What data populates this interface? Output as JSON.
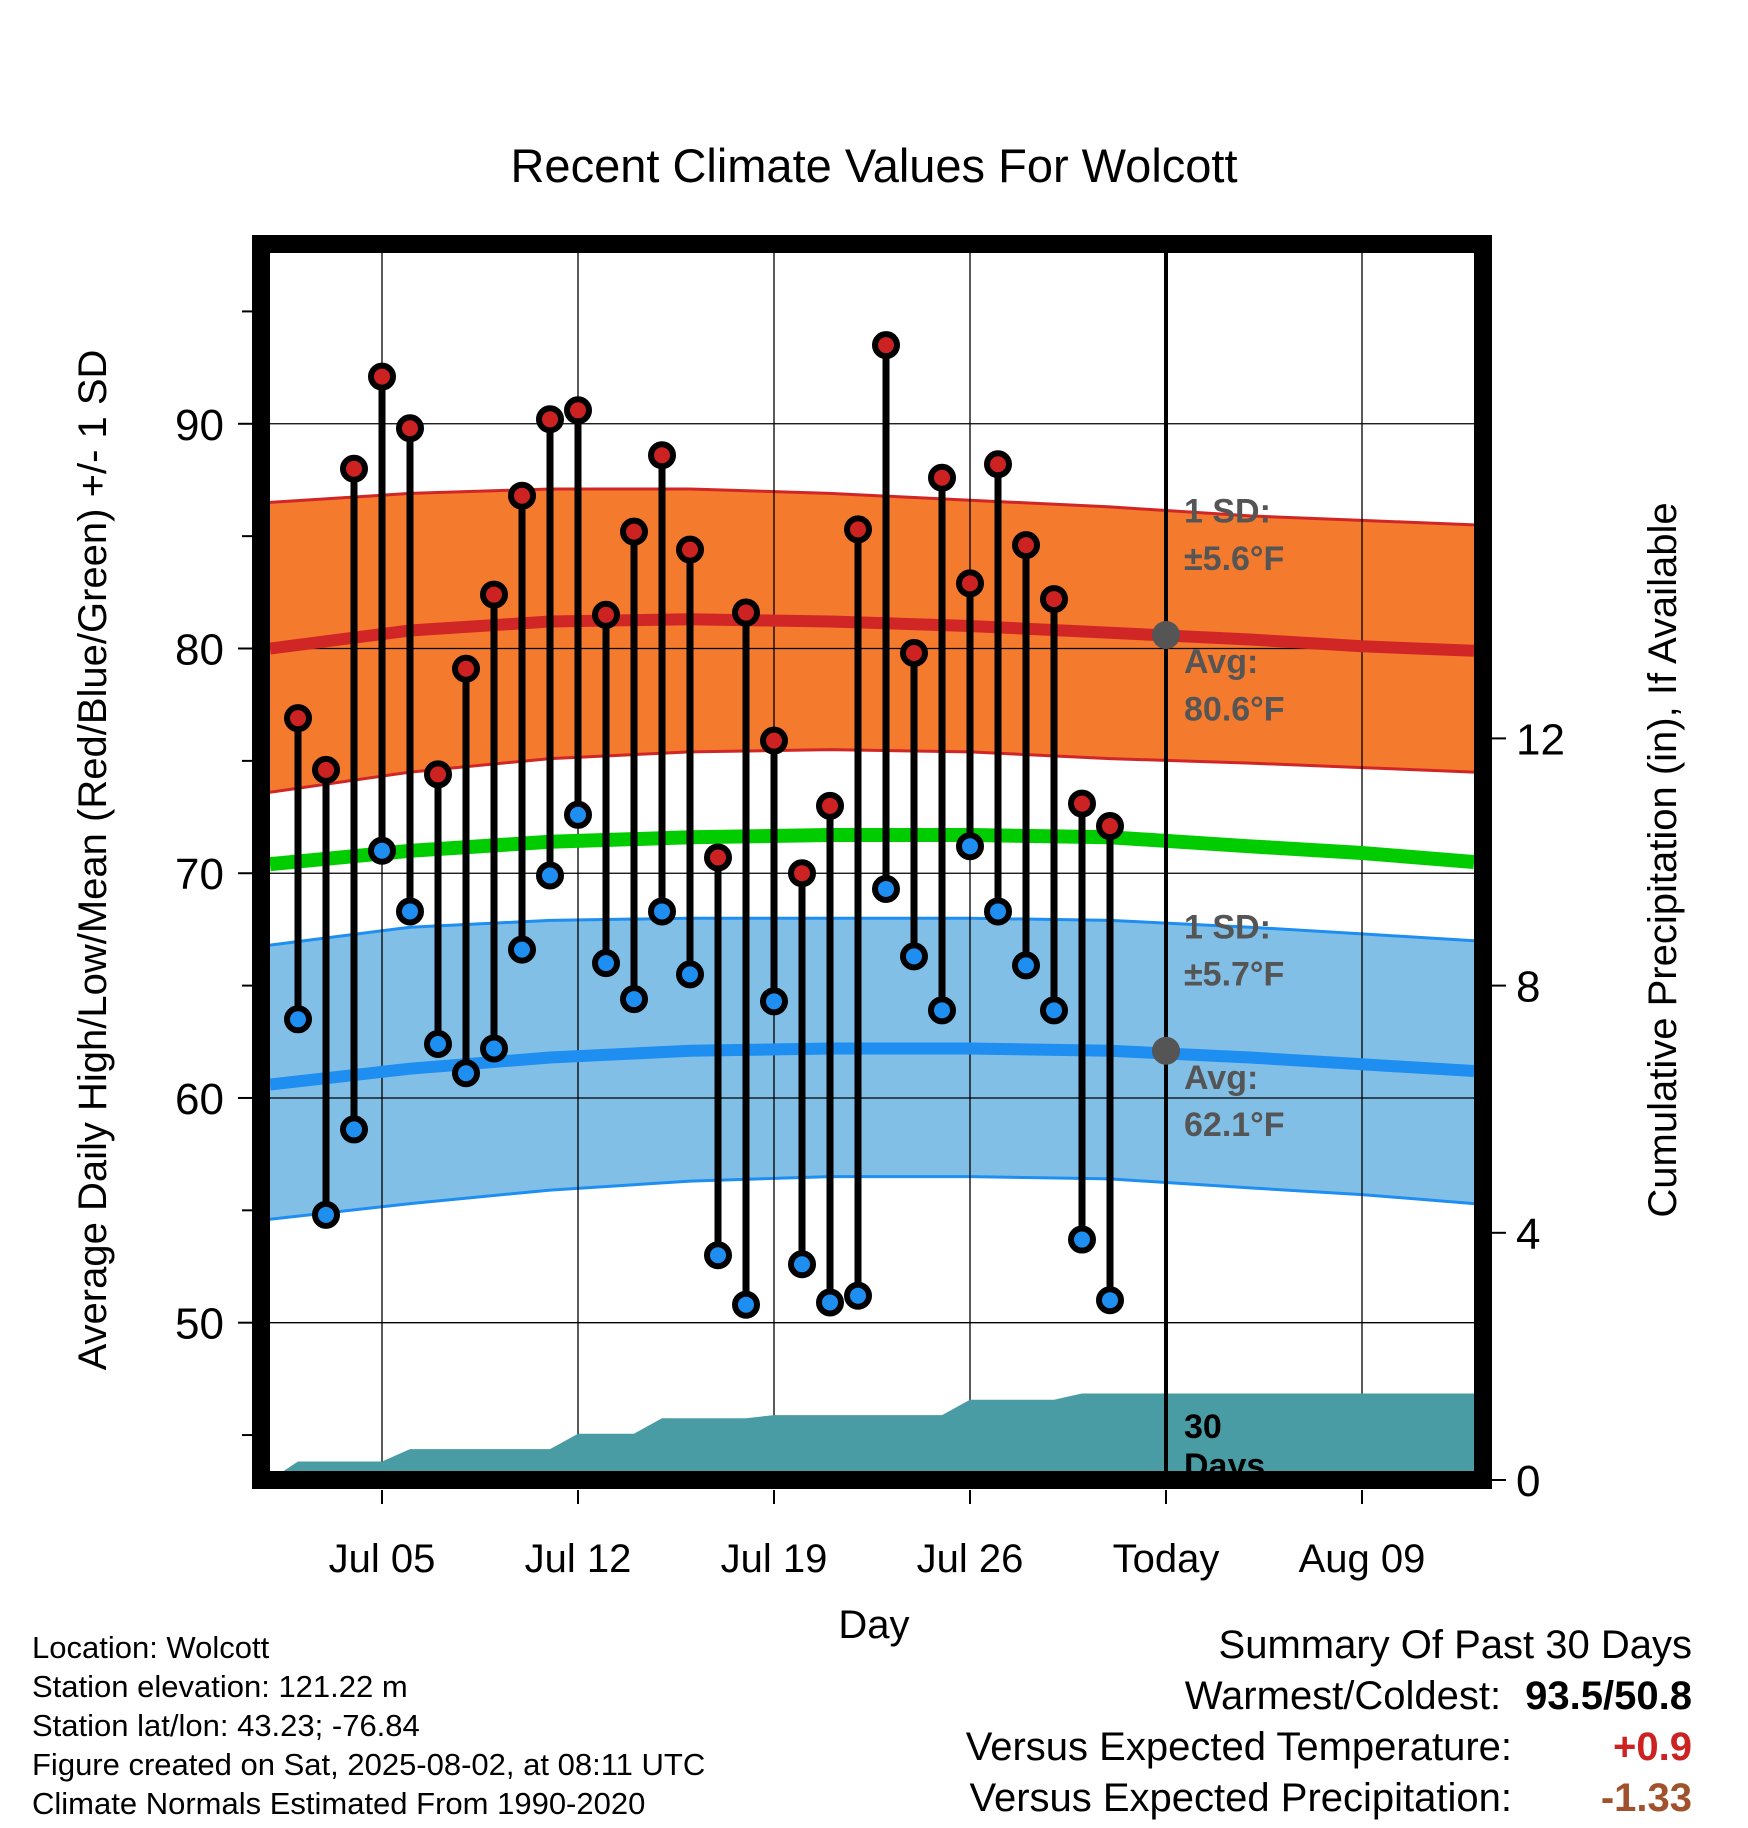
{
  "chart_data": {
    "type": "line",
    "title": "Recent Climate Values For Wolcott",
    "xlabel": "Day",
    "ylabel": "Average Daily High/Low/Mean (Red/Blue/Green) +/- 1 SD",
    "y2label": "Cumulative Precipitation (in), If Available",
    "ylim": [
      43,
      98
    ],
    "y2lim": [
      0,
      20
    ],
    "yticks": [
      50,
      60,
      70,
      80,
      90
    ],
    "y2ticks": [
      0,
      4,
      8,
      12
    ],
    "xlim": [
      "2025-07-01",
      "2025-08-13"
    ],
    "xticks": [
      {
        "date": "2025-07-05",
        "label": "Jul 05"
      },
      {
        "date": "2025-07-12",
        "label": "Jul 12"
      },
      {
        "date": "2025-07-19",
        "label": "Jul 19"
      },
      {
        "date": "2025-07-26",
        "label": "Jul 26"
      },
      {
        "date": "2025-08-02",
        "label": "Today"
      },
      {
        "date": "2025-08-09",
        "label": "Aug 09"
      }
    ],
    "today": "2025-08-02",
    "daily": [
      {
        "date": "2025-07-02",
        "high": 76.9,
        "low": 63.5
      },
      {
        "date": "2025-07-03",
        "high": 74.6,
        "low": 54.8
      },
      {
        "date": "2025-07-04",
        "high": 88.0,
        "low": 58.6
      },
      {
        "date": "2025-07-05",
        "high": 92.1,
        "low": 71.0
      },
      {
        "date": "2025-07-06",
        "high": 89.8,
        "low": 68.3
      },
      {
        "date": "2025-07-07",
        "high": 74.4,
        "low": 62.4
      },
      {
        "date": "2025-07-08",
        "high": 79.1,
        "low": 61.1
      },
      {
        "date": "2025-07-09",
        "high": 82.4,
        "low": 62.2
      },
      {
        "date": "2025-07-10",
        "high": 86.8,
        "low": 66.6
      },
      {
        "date": "2025-07-11",
        "high": 90.2,
        "low": 69.9
      },
      {
        "date": "2025-07-12",
        "high": 90.6,
        "low": 72.6
      },
      {
        "date": "2025-07-13",
        "high": 81.5,
        "low": 66.0
      },
      {
        "date": "2025-07-14",
        "high": 85.2,
        "low": 64.4
      },
      {
        "date": "2025-07-15",
        "high": 88.6,
        "low": 68.3
      },
      {
        "date": "2025-07-16",
        "high": 84.4,
        "low": 65.5
      },
      {
        "date": "2025-07-17",
        "high": 70.7,
        "low": 53.0
      },
      {
        "date": "2025-07-18",
        "high": 81.6,
        "low": 50.8
      },
      {
        "date": "2025-07-19",
        "high": 75.9,
        "low": 64.3
      },
      {
        "date": "2025-07-20",
        "high": 70.0,
        "low": 52.6
      },
      {
        "date": "2025-07-21",
        "high": 73.0,
        "low": 50.9
      },
      {
        "date": "2025-07-22",
        "high": 85.3,
        "low": 51.2
      },
      {
        "date": "2025-07-23",
        "high": 93.5,
        "low": 69.3
      },
      {
        "date": "2025-07-24",
        "high": 79.8,
        "low": 66.3
      },
      {
        "date": "2025-07-25",
        "high": 87.6,
        "low": 63.9
      },
      {
        "date": "2025-07-26",
        "high": 82.9,
        "low": 71.2
      },
      {
        "date": "2025-07-27",
        "high": 88.2,
        "low": 68.3
      },
      {
        "date": "2025-07-28",
        "high": 84.6,
        "low": 65.9
      },
      {
        "date": "2025-07-29",
        "high": 82.2,
        "low": 63.9
      },
      {
        "date": "2025-07-30",
        "high": 73.1,
        "low": 53.7
      },
      {
        "date": "2025-07-31",
        "high": 72.1,
        "low": 51.0
      }
    ],
    "normals": {
      "dates": [
        "2025-07-01",
        "2025-07-06",
        "2025-07-11",
        "2025-07-16",
        "2025-07-21",
        "2025-07-26",
        "2025-07-31",
        "2025-08-05",
        "2025-08-09",
        "2025-08-13"
      ],
      "high_avg": [
        80.0,
        80.8,
        81.2,
        81.3,
        81.2,
        81.0,
        80.7,
        80.4,
        80.1,
        79.9
      ],
      "high_sd_upper": [
        86.5,
        86.9,
        87.1,
        87.1,
        86.9,
        86.6,
        86.3,
        85.9,
        85.7,
        85.5
      ],
      "high_sd_lower": [
        73.6,
        74.5,
        75.1,
        75.4,
        75.5,
        75.4,
        75.1,
        74.9,
        74.7,
        74.5
      ],
      "mean_avg": [
        70.4,
        71.0,
        71.4,
        71.6,
        71.7,
        71.7,
        71.6,
        71.2,
        70.9,
        70.5
      ],
      "low_avg": [
        60.6,
        61.3,
        61.8,
        62.1,
        62.2,
        62.2,
        62.1,
        61.8,
        61.5,
        61.2
      ],
      "low_sd_upper": [
        66.8,
        67.6,
        67.9,
        68.0,
        68.0,
        68.0,
        67.9,
        67.6,
        67.3,
        67.0
      ],
      "low_sd_lower": [
        54.6,
        55.3,
        55.9,
        56.3,
        56.5,
        56.5,
        56.4,
        56.0,
        55.7,
        55.3
      ]
    },
    "precip": {
      "dates": [
        "2025-07-01",
        "2025-07-02",
        "2025-07-05",
        "2025-07-06",
        "2025-07-11",
        "2025-07-12",
        "2025-07-14",
        "2025-07-15",
        "2025-07-18",
        "2025-07-19",
        "2025-07-25",
        "2025-07-26",
        "2025-07-29",
        "2025-07-30",
        "2025-08-13"
      ],
      "values": [
        0.0,
        0.3,
        0.3,
        0.5,
        0.5,
        0.75,
        0.75,
        1.0,
        1.0,
        1.05,
        1.05,
        1.3,
        1.3,
        1.4,
        1.4
      ]
    }
  },
  "annotations": {
    "high_sd_label": "1 SD:",
    "high_sd_value": "±5.6°F",
    "high_avg_label": "Avg:",
    "high_avg_value": "80.6°F",
    "low_sd_label": "1 SD:",
    "low_sd_value": "±5.7°F",
    "low_avg_label": "Avg:",
    "low_avg_value": "62.1°F",
    "precip_label_line1": "30",
    "precip_label_line2": "Days"
  },
  "colors": {
    "high_band": "#f47a2e",
    "high_line": "#d02626",
    "low_band": "#82bfe6",
    "low_line": "#1e8ef0",
    "mean_line": "#00cc00",
    "precip_fill": "#4a9ca4",
    "high_dot": "#cc2222",
    "low_dot": "#1e8ef0",
    "today_dot": "#555555",
    "annotation_text": "#555555",
    "positive_anomaly": "#cc2222",
    "negative_anomaly": "#a0522d"
  },
  "footer": {
    "location": "Location: Wolcott",
    "elevation": "Station elevation: 121.22 m",
    "latlon": "Station lat/lon: 43.23; -76.84",
    "created": "Figure created on Sat, 2025-08-02, at 08:11 UTC",
    "normals": "Climate Normals Estimated From 1990-2020"
  },
  "summary": {
    "title": "Summary Of Past 30 Days",
    "warm_cold_label": "Warmest/Coldest:",
    "warm": "93.5",
    "cold": "50.8",
    "temp_label": "Versus Expected Temperature:",
    "temp_value": "+0.9",
    "precip_label": "Versus Expected Precipitation:",
    "precip_value": "-1.33"
  }
}
